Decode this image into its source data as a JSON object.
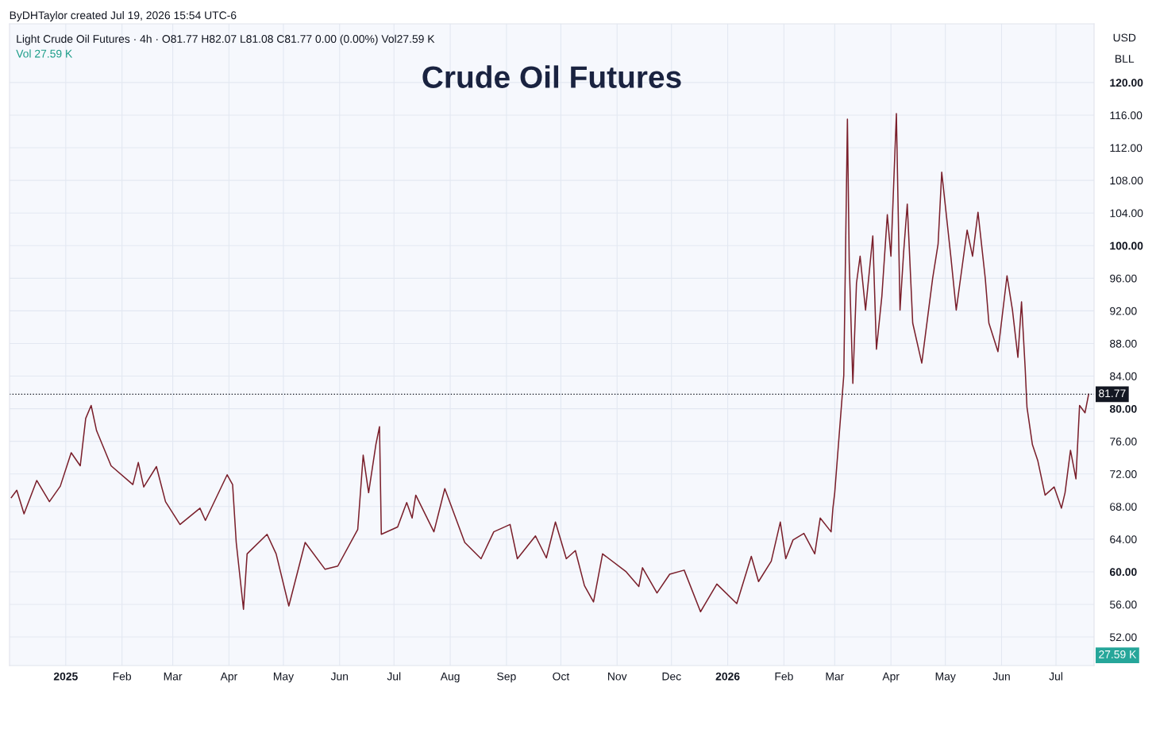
{
  "chart_data": {
    "type": "line",
    "title": "Crude Oil Futures",
    "annotations": [
      "ByDHTaylor created Jul 19, 2026 15:54 UTC-6",
      "Light Crude Oil Futures · 4h · O81.77 H82.07 L81.08 C81.77 0.00 (0.00%) Vol27.59 K",
      "Vol 27.59 K",
      "USD",
      "BLL",
      "27.59 K"
    ],
    "series": [
      {
        "color": "#7a1f2b",
        "x": [
          "2024-12-02",
          "2024-12-05",
          "2024-12-09",
          "2024-12-16",
          "2024-12-23",
          "2024-12-29",
          "2025-01-04",
          "2025-01-09",
          "2025-01-12",
          "2025-01-15",
          "2025-01-18",
          "2025-01-26",
          "2025-02-07",
          "2025-02-10",
          "2025-02-13",
          "2025-02-20",
          "2025-02-25",
          "2025-03-05",
          "2025-03-16",
          "2025-03-19",
          "2025-03-31",
          "2025-04-03",
          "2025-04-05",
          "2025-04-09",
          "2025-04-11",
          "2025-04-22",
          "2025-04-27",
          "2025-05-04",
          "2025-05-13",
          "2025-05-24",
          "2025-05-31",
          "2025-06-11",
          "2025-06-14",
          "2025-06-17",
          "2025-06-21",
          "2025-06-23",
          "2025-06-24",
          "2025-07-03",
          "2025-07-08",
          "2025-07-11",
          "2025-07-13",
          "2025-07-23",
          "2025-07-29",
          "2025-08-09",
          "2025-08-18",
          "2025-08-25",
          "2025-09-03",
          "2025-09-07",
          "2025-09-17",
          "2025-09-23",
          "2025-09-28",
          "2025-10-04",
          "2025-10-09",
          "2025-10-14",
          "2025-10-19",
          "2025-10-24",
          "2025-11-06",
          "2025-11-13",
          "2025-11-15",
          "2025-11-23",
          "2025-11-30",
          "2025-12-08",
          "2025-12-17",
          "2025-12-26",
          "2026-01-06",
          "2026-01-14",
          "2026-01-18",
          "2026-01-25",
          "2026-01-30",
          "2026-02-02",
          "2026-02-06",
          "2026-02-12",
          "2026-02-18",
          "2026-02-21",
          "2026-02-27",
          "2026-02-28",
          "2026-03-01",
          "2026-03-06",
          "2026-03-08",
          "2026-03-09",
          "2026-03-11",
          "2026-03-13",
          "2026-03-15",
          "2026-03-18",
          "2026-03-22",
          "2026-03-24",
          "2026-03-27",
          "2026-03-30",
          "2026-04-01",
          "2026-04-04",
          "2026-04-06",
          "2026-04-08",
          "2026-04-10",
          "2026-04-13",
          "2026-04-18",
          "2026-04-24",
          "2026-04-27",
          "2026-04-29",
          "2026-05-04",
          "2026-05-07",
          "2026-05-13",
          "2026-05-16",
          "2026-05-19",
          "2026-05-23",
          "2026-05-25",
          "2026-05-30",
          "2026-06-04",
          "2026-06-07",
          "2026-06-10",
          "2026-06-12",
          "2026-06-14",
          "2026-06-15",
          "2026-06-18",
          "2026-06-21",
          "2026-06-25",
          "2026-06-30",
          "2026-07-04",
          "2026-07-06",
          "2026-07-09",
          "2026-07-12",
          "2026-07-14",
          "2026-07-17",
          "2026-07-19"
        ],
        "values": [
          69.1,
          70.0,
          67.1,
          71.2,
          68.6,
          70.5,
          74.6,
          73.0,
          78.8,
          80.4,
          77.3,
          73.0,
          70.7,
          73.4,
          70.4,
          72.9,
          68.6,
          65.8,
          67.8,
          66.3,
          71.9,
          70.7,
          63.6,
          55.4,
          62.2,
          64.6,
          62.2,
          55.8,
          63.6,
          60.3,
          60.7,
          65.2,
          74.3,
          69.7,
          75.6,
          77.8,
          64.6,
          65.5,
          68.5,
          66.6,
          69.4,
          64.9,
          70.2,
          63.6,
          61.6,
          64.9,
          65.8,
          61.6,
          64.4,
          61.7,
          66.1,
          61.6,
          62.6,
          58.3,
          56.3,
          62.2,
          60.0,
          58.2,
          60.5,
          57.4,
          59.7,
          60.2,
          55.1,
          58.5,
          56.1,
          61.9,
          58.8,
          61.3,
          66.1,
          61.6,
          63.9,
          64.7,
          62.2,
          66.6,
          64.9,
          67.8,
          69.7,
          84.1,
          115.5,
          98.0,
          83.1,
          95.4,
          98.7,
          92.1,
          101.2,
          87.3,
          93.8,
          103.8,
          98.7,
          116.2,
          92.1,
          99.2,
          105.1,
          90.5,
          85.6,
          96.0,
          100.2,
          109.0,
          98.7,
          92.1,
          101.9,
          98.7,
          104.1,
          96.0,
          90.5,
          87.0,
          96.3,
          92.1,
          86.3,
          93.1,
          85.0,
          80.2,
          75.6,
          73.6,
          69.4,
          70.4,
          67.8,
          69.7,
          74.9,
          71.4,
          80.4,
          79.5,
          81.77
        ]
      }
    ],
    "xlim": [
      "2024-12-01",
      "2026-07-22"
    ],
    "xticks": [
      {
        "value": "2025-01-01",
        "label": "2025"
      },
      {
        "value": "2025-02-01",
        "label": "Feb"
      },
      {
        "value": "2025-03-01",
        "label": "Mar"
      },
      {
        "value": "2025-04-01",
        "label": "Apr"
      },
      {
        "value": "2025-05-01",
        "label": "May"
      },
      {
        "value": "2025-06-01",
        "label": "Jun"
      },
      {
        "value": "2025-07-01",
        "label": "Jul"
      },
      {
        "value": "2025-08-01",
        "label": "Aug"
      },
      {
        "value": "2025-09-01",
        "label": "Sep"
      },
      {
        "value": "2025-10-01",
        "label": "Oct"
      },
      {
        "value": "2025-11-01",
        "label": "Nov"
      },
      {
        "value": "2025-12-01",
        "label": "Dec"
      },
      {
        "value": "2026-01-01",
        "label": "2026"
      },
      {
        "value": "2026-02-01",
        "label": "Feb"
      },
      {
        "value": "2026-03-01",
        "label": "Mar"
      },
      {
        "value": "2026-04-01",
        "label": "Apr"
      },
      {
        "value": "2026-05-01",
        "label": "May"
      },
      {
        "value": "2026-06-01",
        "label": "Jun"
      },
      {
        "value": "2026-07-01",
        "label": "Jul"
      }
    ],
    "ylim": [
      48.5,
      127.2
    ],
    "yticks": [
      {
        "value": 52,
        "label": "52.00"
      },
      {
        "value": 56,
        "label": "56.00"
      },
      {
        "value": 60,
        "label": "60.00"
      },
      {
        "value": 64,
        "label": "64.00"
      },
      {
        "value": 68,
        "label": "68.00"
      },
      {
        "value": 72,
        "label": "72.00"
      },
      {
        "value": 76,
        "label": "76.00"
      },
      {
        "value": 80,
        "label": "80.00"
      },
      {
        "value": 84,
        "label": "84.00"
      },
      {
        "value": 88,
        "label": "88.00"
      },
      {
        "value": 92,
        "label": "92.00"
      },
      {
        "value": 96,
        "label": "96.00"
      },
      {
        "value": 100,
        "label": "100.00"
      },
      {
        "value": 104,
        "label": "104.00"
      },
      {
        "value": 108,
        "label": "108.00"
      },
      {
        "value": 112,
        "label": "112.00"
      },
      {
        "value": 116,
        "label": "116.00"
      },
      {
        "value": 120,
        "label": "120.00"
      }
    ],
    "ref_lines": [
      {
        "axis": "y",
        "value": 81.77,
        "label": "81.77",
        "color": "#131722",
        "line_style": "dotted"
      }
    ],
    "grid": true,
    "marker": "none",
    "line_style": "solid"
  }
}
